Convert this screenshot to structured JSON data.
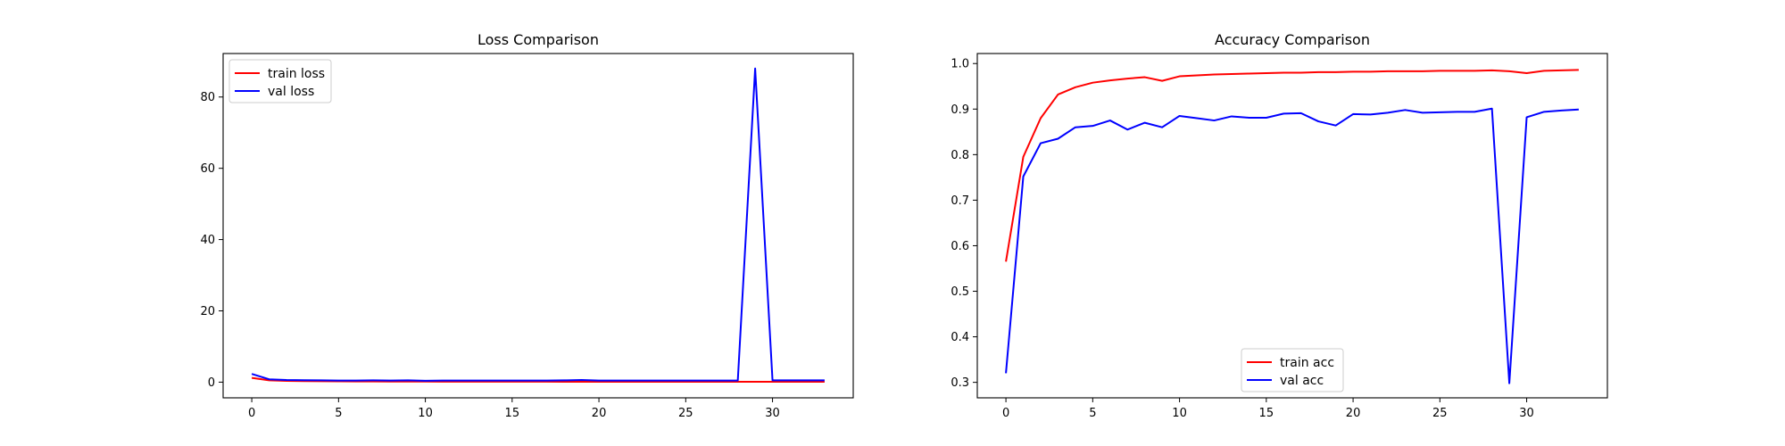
{
  "chart_data": [
    {
      "type": "line",
      "title": "Loss Comparison",
      "xlabel": "",
      "ylabel": "",
      "x": [
        0,
        1,
        2,
        3,
        4,
        5,
        6,
        7,
        8,
        9,
        10,
        11,
        12,
        13,
        14,
        15,
        16,
        17,
        18,
        19,
        20,
        21,
        22,
        23,
        24,
        25,
        26,
        27,
        28,
        29,
        30,
        31,
        32,
        33
      ],
      "xlim": [
        -1.65,
        34.65
      ],
      "ylim": [
        -4.4,
        92.2
      ],
      "xticks": [
        0,
        5,
        10,
        15,
        20,
        25,
        30
      ],
      "yticks": [
        0,
        20,
        40,
        60,
        80
      ],
      "grid": false,
      "legend_position": "upper left",
      "series": [
        {
          "name": "train loss",
          "color": "#ff0000",
          "values": [
            1.2,
            0.5,
            0.35,
            0.3,
            0.25,
            0.22,
            0.2,
            0.19,
            0.18,
            0.18,
            0.16,
            0.15,
            0.15,
            0.14,
            0.14,
            0.13,
            0.13,
            0.13,
            0.12,
            0.12,
            0.12,
            0.12,
            0.11,
            0.11,
            0.11,
            0.11,
            0.11,
            0.1,
            0.1,
            0.1,
            0.1,
            0.1,
            0.1,
            0.1
          ]
        },
        {
          "name": "val loss",
          "color": "#0000ff",
          "values": [
            2.3,
            0.8,
            0.6,
            0.55,
            0.5,
            0.45,
            0.45,
            0.5,
            0.45,
            0.5,
            0.4,
            0.45,
            0.45,
            0.45,
            0.45,
            0.45,
            0.45,
            0.45,
            0.5,
            0.6,
            0.45,
            0.45,
            0.45,
            0.45,
            0.45,
            0.45,
            0.45,
            0.45,
            0.45,
            88.0,
            0.5,
            0.5,
            0.5,
            0.5
          ]
        }
      ]
    },
    {
      "type": "line",
      "title": "Accuracy Comparison",
      "xlabel": "",
      "ylabel": "",
      "x": [
        0,
        1,
        2,
        3,
        4,
        5,
        6,
        7,
        8,
        9,
        10,
        11,
        12,
        13,
        14,
        15,
        16,
        17,
        18,
        19,
        20,
        21,
        22,
        23,
        24,
        25,
        26,
        27,
        28,
        29,
        30,
        31,
        32,
        33
      ],
      "xlim": [
        -1.65,
        34.65
      ],
      "ylim": [
        0.266,
        1.022
      ],
      "xticks": [
        0,
        5,
        10,
        15,
        20,
        25,
        30
      ],
      "yticks": [
        0.3,
        0.4,
        0.5,
        0.6,
        0.7,
        0.8,
        0.9,
        1.0
      ],
      "ytick_labels": [
        "0.3",
        "0.4",
        "0.5",
        "0.6",
        "0.7",
        "0.8",
        "0.9",
        "1.0"
      ],
      "grid": false,
      "legend_position": "lower center",
      "series": [
        {
          "name": "train acc",
          "color": "#ff0000",
          "values": [
            0.565,
            0.795,
            0.88,
            0.932,
            0.948,
            0.958,
            0.963,
            0.967,
            0.97,
            0.962,
            0.972,
            0.974,
            0.976,
            0.977,
            0.978,
            0.979,
            0.98,
            0.98,
            0.981,
            0.981,
            0.982,
            0.982,
            0.983,
            0.983,
            0.983,
            0.984,
            0.984,
            0.984,
            0.985,
            0.983,
            0.979,
            0.984,
            0.985,
            0.986
          ]
        },
        {
          "name": "val acc",
          "color": "#0000ff",
          "values": [
            0.32,
            0.752,
            0.825,
            0.835,
            0.86,
            0.863,
            0.875,
            0.855,
            0.87,
            0.86,
            0.885,
            0.88,
            0.875,
            0.884,
            0.881,
            0.881,
            0.89,
            0.891,
            0.873,
            0.864,
            0.889,
            0.888,
            0.892,
            0.898,
            0.892,
            0.893,
            0.894,
            0.894,
            0.901,
            0.298,
            0.882,
            0.894,
            0.897,
            0.899
          ]
        }
      ]
    }
  ]
}
